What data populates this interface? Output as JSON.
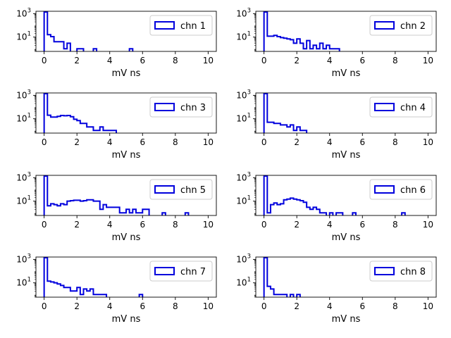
{
  "chart_data": {
    "type": "histogram",
    "layout": {
      "rows": 4,
      "cols": 2
    },
    "xlabel": "mV ns",
    "xlim": [
      -0.5,
      10.5
    ],
    "x_ticks": [
      0,
      2,
      4,
      6,
      8,
      10
    ],
    "y_scale": "log",
    "ylim": [
      0.6,
      1600
    ],
    "y_ticks": [
      {
        "value": 1000,
        "base": "10",
        "exp": "3"
      },
      {
        "value": 10,
        "base": "10",
        "exp": "1"
      }
    ],
    "bin_width": 0.2,
    "series_color": "#0000dd",
    "legend_position": "upper right",
    "panels": [
      {
        "name": "chn 1",
        "counts": [
          [
            0,
            1400
          ],
          [
            0.2,
            16
          ],
          [
            0.4,
            11
          ],
          [
            0.6,
            4
          ],
          [
            0.8,
            4
          ],
          [
            1.0,
            4
          ],
          [
            1.2,
            1
          ],
          [
            1.4,
            3
          ],
          [
            2.0,
            1
          ],
          [
            2.2,
            1
          ],
          [
            3.0,
            1
          ],
          [
            5.2,
            1
          ]
        ]
      },
      {
        "name": "chn 2",
        "counts": [
          [
            0,
            1400
          ],
          [
            0.2,
            12
          ],
          [
            0.4,
            12
          ],
          [
            0.6,
            14
          ],
          [
            0.8,
            11
          ],
          [
            1.0,
            9
          ],
          [
            1.2,
            8
          ],
          [
            1.4,
            7
          ],
          [
            1.6,
            6
          ],
          [
            1.8,
            3
          ],
          [
            2.0,
            7
          ],
          [
            2.2,
            3
          ],
          [
            2.4,
            1
          ],
          [
            2.6,
            5
          ],
          [
            2.8,
            1
          ],
          [
            3.0,
            2
          ],
          [
            3.2,
            1
          ],
          [
            3.4,
            3
          ],
          [
            3.6,
            1
          ],
          [
            3.8,
            2
          ],
          [
            4.0,
            1
          ],
          [
            4.2,
            1
          ],
          [
            4.4,
            1
          ]
        ]
      },
      {
        "name": "chn 3",
        "counts": [
          [
            0,
            1400
          ],
          [
            0.2,
            20
          ],
          [
            0.4,
            14
          ],
          [
            0.6,
            14
          ],
          [
            0.8,
            16
          ],
          [
            1.0,
            19
          ],
          [
            1.2,
            18
          ],
          [
            1.4,
            19
          ],
          [
            1.6,
            15
          ],
          [
            1.8,
            9
          ],
          [
            2.0,
            7
          ],
          [
            2.2,
            4
          ],
          [
            2.4,
            4
          ],
          [
            2.6,
            2
          ],
          [
            2.8,
            2
          ],
          [
            3.0,
            1
          ],
          [
            3.2,
            1
          ],
          [
            3.4,
            2
          ],
          [
            3.6,
            1
          ],
          [
            3.8,
            1
          ],
          [
            4.0,
            1
          ],
          [
            4.2,
            1
          ]
        ]
      },
      {
        "name": "chn 4",
        "counts": [
          [
            0,
            1400
          ],
          [
            0.2,
            5
          ],
          [
            0.4,
            5
          ],
          [
            0.6,
            4
          ],
          [
            0.8,
            4
          ],
          [
            1.0,
            3
          ],
          [
            1.2,
            3
          ],
          [
            1.4,
            2
          ],
          [
            1.6,
            3
          ],
          [
            1.8,
            1
          ],
          [
            2.0,
            2
          ],
          [
            2.2,
            1
          ],
          [
            2.4,
            1
          ]
        ]
      },
      {
        "name": "chn 5",
        "counts": [
          [
            0,
            1400
          ],
          [
            0.2,
            4
          ],
          [
            0.4,
            6
          ],
          [
            0.6,
            5
          ],
          [
            0.8,
            4
          ],
          [
            1.0,
            6
          ],
          [
            1.2,
            5
          ],
          [
            1.4,
            10
          ],
          [
            1.6,
            11
          ],
          [
            1.8,
            12
          ],
          [
            2.0,
            12
          ],
          [
            2.2,
            10
          ],
          [
            2.4,
            11
          ],
          [
            2.6,
            13
          ],
          [
            2.8,
            13
          ],
          [
            3.0,
            10
          ],
          [
            3.2,
            10
          ],
          [
            3.4,
            2
          ],
          [
            3.6,
            5
          ],
          [
            3.8,
            3
          ],
          [
            4.0,
            3
          ],
          [
            4.2,
            3
          ],
          [
            4.4,
            3
          ],
          [
            4.6,
            1
          ],
          [
            4.8,
            1
          ],
          [
            5.0,
            2
          ],
          [
            5.2,
            1
          ],
          [
            5.4,
            2
          ],
          [
            5.6,
            1
          ],
          [
            5.8,
            1
          ],
          [
            6.0,
            2
          ],
          [
            6.2,
            2
          ],
          [
            7.2,
            1
          ],
          [
            8.6,
            1
          ]
        ]
      },
      {
        "name": "chn 6",
        "counts": [
          [
            0,
            1400
          ],
          [
            0.2,
            1
          ],
          [
            0.4,
            5
          ],
          [
            0.6,
            7
          ],
          [
            0.8,
            5
          ],
          [
            1.0,
            6
          ],
          [
            1.2,
            13
          ],
          [
            1.4,
            15
          ],
          [
            1.6,
            18
          ],
          [
            1.8,
            15
          ],
          [
            2.0,
            13
          ],
          [
            2.2,
            11
          ],
          [
            2.4,
            8
          ],
          [
            2.6,
            3
          ],
          [
            2.8,
            2
          ],
          [
            3.0,
            3
          ],
          [
            3.2,
            2
          ],
          [
            3.4,
            1
          ],
          [
            3.6,
            1
          ],
          [
            4.0,
            1
          ],
          [
            4.4,
            1
          ],
          [
            4.6,
            1
          ],
          [
            5.4,
            1
          ],
          [
            8.4,
            1
          ]
        ]
      },
      {
        "name": "chn 7",
        "counts": [
          [
            0,
            1400
          ],
          [
            0.2,
            14
          ],
          [
            0.4,
            12
          ],
          [
            0.6,
            10
          ],
          [
            0.8,
            8
          ],
          [
            1.0,
            6
          ],
          [
            1.2,
            4
          ],
          [
            1.4,
            4
          ],
          [
            1.6,
            2
          ],
          [
            1.8,
            2
          ],
          [
            2.0,
            4
          ],
          [
            2.2,
            1
          ],
          [
            2.4,
            3
          ],
          [
            2.6,
            2
          ],
          [
            2.8,
            3
          ],
          [
            3.0,
            1
          ],
          [
            3.2,
            1
          ],
          [
            3.4,
            1
          ],
          [
            3.6,
            1
          ],
          [
            5.8,
            1
          ]
        ]
      },
      {
        "name": "chn 8",
        "counts": [
          [
            0,
            1400
          ],
          [
            0.2,
            5
          ],
          [
            0.4,
            3
          ],
          [
            0.6,
            1
          ],
          [
            0.8,
            1
          ],
          [
            1.0,
            1
          ],
          [
            1.2,
            1
          ],
          [
            1.6,
            1
          ],
          [
            2.0,
            1
          ]
        ]
      }
    ]
  }
}
